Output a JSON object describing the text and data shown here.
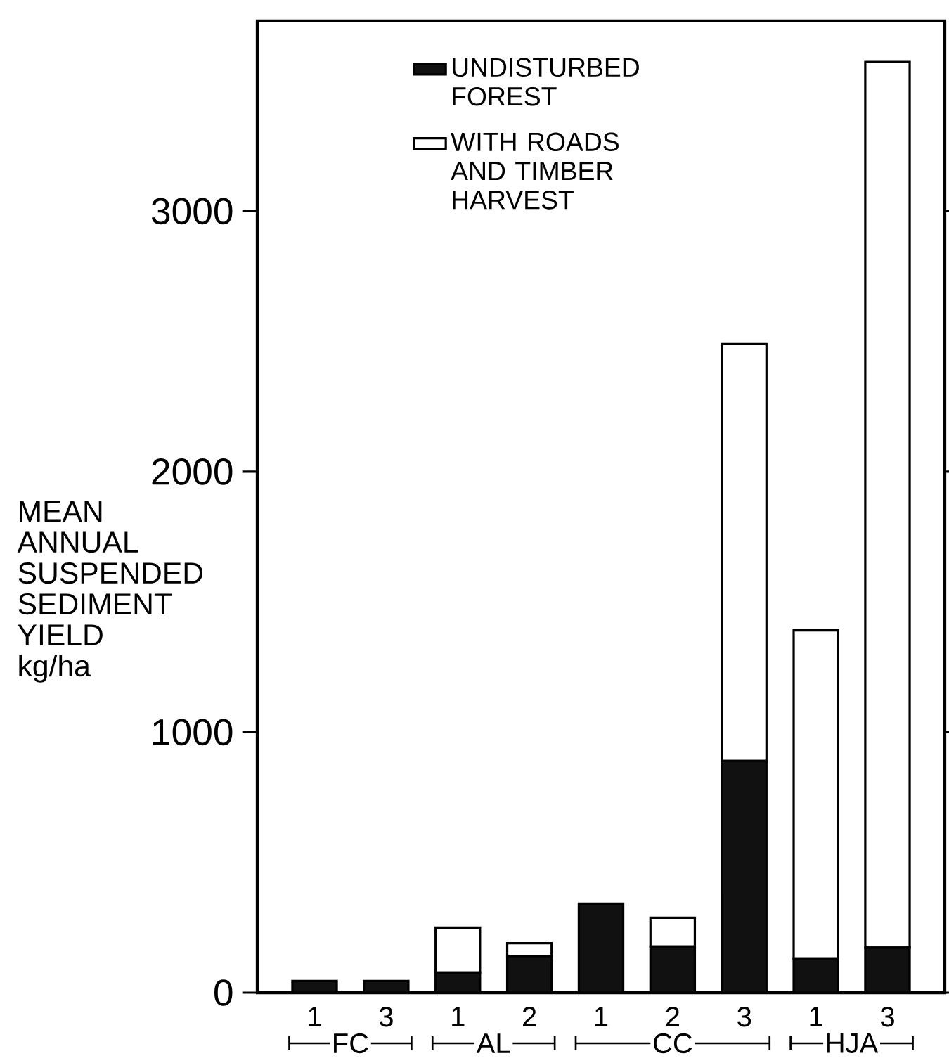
{
  "chart_data": {
    "type": "bar",
    "stacked": true,
    "ylabel": "MEAN ANNUAL SUSPENDED SEDIMENT YIELD kg/ha",
    "categories": [
      "1",
      "3",
      "1",
      "2",
      "1",
      "2",
      "3",
      "1",
      "3"
    ],
    "series": [
      {
        "name": "UNDISTURBED FOREST",
        "color": "#111111",
        "values": [
          45,
          45,
          77,
          140,
          342,
          177,
          890,
          131,
          173
        ]
      },
      {
        "name": "WITH ROADS AND TIMBER HARVEST",
        "color": "#ffffff",
        "values": [
          0,
          0,
          173,
          50,
          0,
          111,
          1600,
          1260,
          3400
        ]
      }
    ],
    "ylim": [
      0,
      3730
    ],
    "yticks": [
      0,
      1000,
      2000,
      3000
    ],
    "legend": "top",
    "annotations": [
      "FC",
      "AL",
      "CC",
      "HJA"
    ]
  }
}
